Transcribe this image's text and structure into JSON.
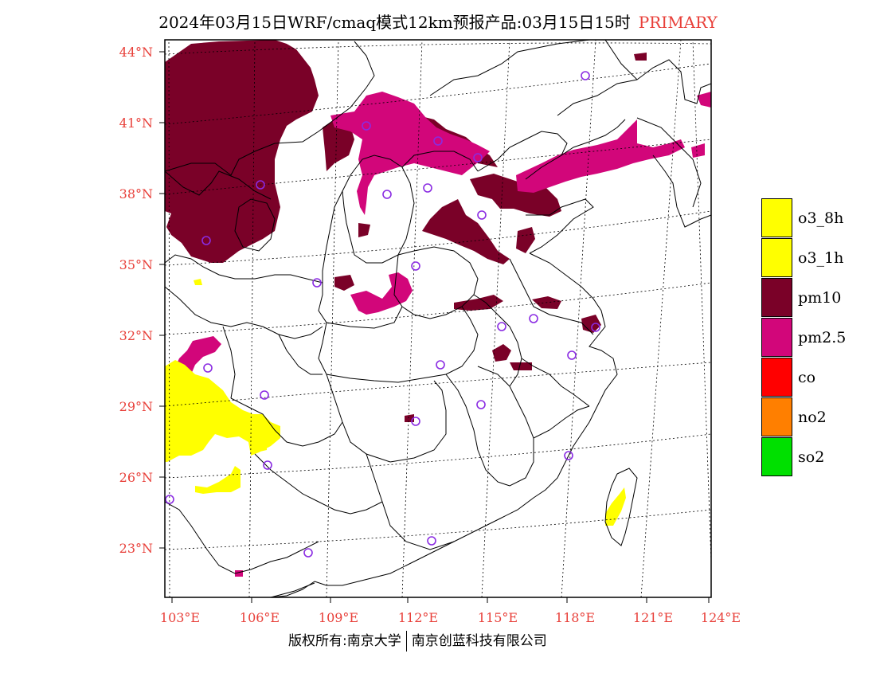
{
  "title": {
    "main": "2024年03月15日WRF/cmaq模式12km预报产品:03月15日15时",
    "primary": "PRIMARY"
  },
  "axes": {
    "lat_labels": [
      "44°N",
      "41°N",
      "38°N",
      "35°N",
      "32°N",
      "29°N",
      "26°N",
      "23°N"
    ],
    "lon_labels": [
      "103°E",
      "106°E",
      "109°E",
      "112°E",
      "115°E",
      "118°E",
      "121°E",
      "124°E"
    ]
  },
  "legend": {
    "items": [
      {
        "label": "o3_8h",
        "color": "#ffff00"
      },
      {
        "label": "o3_1h",
        "color": "#ffff00"
      },
      {
        "label": "pm10",
        "color": "#7a0128"
      },
      {
        "label": "pm2.5",
        "color": "#d2067a"
      },
      {
        "label": "co",
        "color": "#ff0000"
      },
      {
        "label": "no2",
        "color": "#ff7f00"
      },
      {
        "label": "so2",
        "color": "#00e000"
      }
    ]
  },
  "colors": {
    "pm10": "#7a0128",
    "pm25": "#d2067a",
    "o3": "#ffff00",
    "station": "#8a2be2",
    "label": "#e8403a"
  },
  "footer": {
    "left": "版权所有:南京大学",
    "right": "南京创蓝科技有限公司"
  }
}
